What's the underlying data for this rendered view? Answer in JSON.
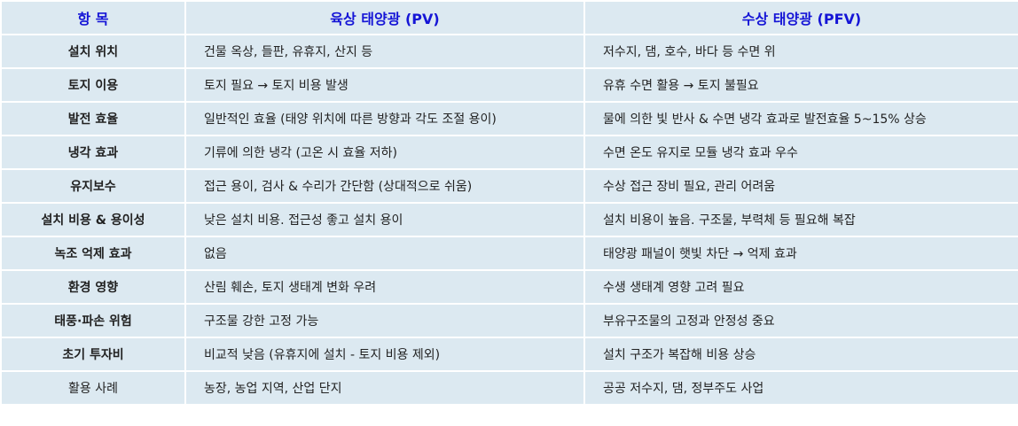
{
  "table": {
    "headers": [
      "항 목",
      "육상 태양광 (PV)",
      "수상 태양광 (PFV)"
    ],
    "rows": [
      [
        "설치 위치",
        "건물 옥상, 들판, 유휴지, 산지 등",
        "저수지, 댐, 호수, 바다 등 수면 위"
      ],
      [
        "토지 이용",
        "토지 필요 → 토지 비용 발생",
        "유휴 수면 활용 → 토지 불필요"
      ],
      [
        "발전 효율",
        "일반적인 효율 (태양 위치에 따른 방향과 각도 조절 용이)",
        "물에 의한 빛 반사 & 수면 냉각 효과로 발전효율 5~15% 상승"
      ],
      [
        "냉각 효과",
        "기류에 의한 냉각 (고온 시 효율 저하)",
        "수면 온도 유지로 모듈 냉각 효과 우수"
      ],
      [
        "유지보수",
        "접근 용이, 검사 & 수리가 간단함 (상대적으로 쉬움)",
        "수상 접근 장비 필요, 관리 어려움"
      ],
      [
        "설치 비용 & 용이성",
        "낮은 설치 비용. 접근성 좋고 설치 용이",
        "설치 비용이 높음. 구조물, 부력체 등 필요해 복잡"
      ],
      [
        "녹조 억제 효과",
        "없음",
        "태양광 패널이 햇빛 차단 → 억제 효과"
      ],
      [
        "환경 영향",
        "산림 훼손, 토지 생태계 변화 우려",
        "수생 생태계 영향 고려 필요"
      ],
      [
        "태풍·파손 위험",
        "구조물 강한 고정 가능",
        "부유구조물의 고정과 안정성 중요"
      ],
      [
        "초기 투자비",
        "비교적 낮음 (유휴지에 설치 - 토지 비용 제외)",
        "설치 구조가 복잡해 비용 상승"
      ],
      [
        "활용 사례",
        "농장, 농업 지역, 산업 단지",
        "공공 저수지, 댐, 정부주도 사업"
      ]
    ]
  }
}
